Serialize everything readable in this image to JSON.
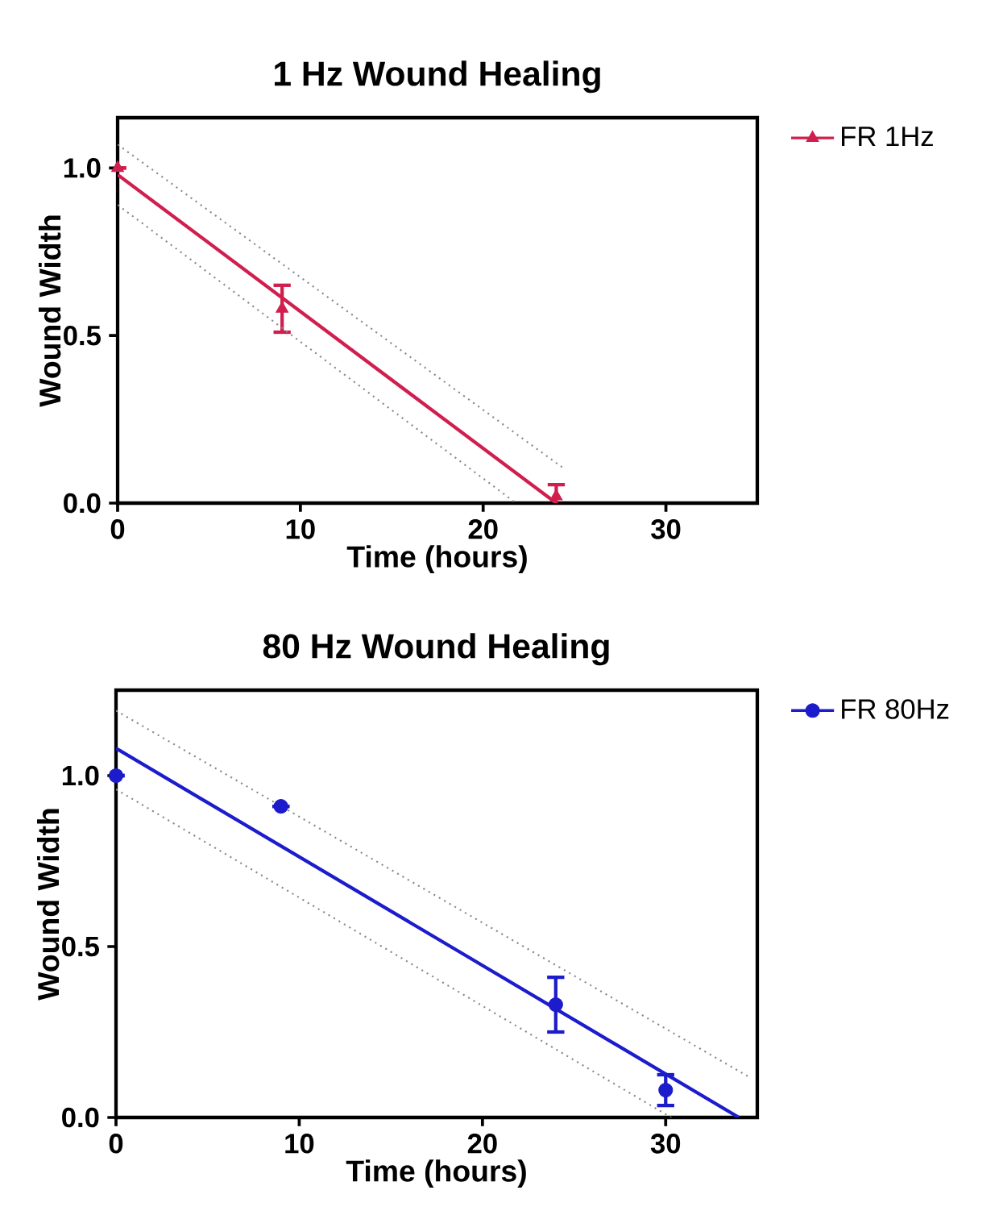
{
  "chart_data": [
    {
      "type": "scatter",
      "title": "1 Hz Wound Healing",
      "xlabel": "Time (hours)",
      "ylabel": "Wound Width",
      "xlim": [
        0,
        35
      ],
      "ylim": [
        0,
        1.15
      ],
      "xticks": [
        0,
        10,
        20,
        30
      ],
      "yticks": [
        {
          "value": 0,
          "label": "0.0"
        },
        {
          "value": 0.5,
          "label": "0.5"
        },
        {
          "value": 1,
          "label": "1.0"
        }
      ],
      "legend": "right",
      "series": [
        {
          "name": "FR 1Hz",
          "type": "scatter",
          "marker": "triangle",
          "color": "#d01f4e",
          "x": [
            0,
            9,
            24
          ],
          "values": [
            1.0,
            0.58,
            0.02
          ],
          "errors": [
            null,
            0.07,
            0.035
          ]
        },
        {
          "type": "line",
          "marker": "none",
          "color": "#d01f4e",
          "line_style": "solid",
          "x": [
            0,
            24
          ],
          "values": [
            0.98,
            0
          ]
        },
        {
          "type": "line",
          "marker": "none",
          "color": "#8a8a8a",
          "line_style": "dotted",
          "x": [
            0,
            24.5
          ],
          "values": [
            1.07,
            0.1
          ]
        },
        {
          "type": "line",
          "marker": "none",
          "color": "#8a8a8a",
          "line_style": "dotted",
          "x": [
            0,
            21.8
          ],
          "values": [
            0.89,
            0
          ]
        }
      ]
    },
    {
      "type": "scatter",
      "title": "80 Hz Wound Healing",
      "xlabel": "Time (hours)",
      "ylabel": "Wound Width",
      "xlim": [
        0,
        35
      ],
      "ylim": [
        0,
        1.25
      ],
      "xticks": [
        0,
        10,
        20,
        30
      ],
      "yticks": [
        {
          "value": 0,
          "label": "0.0"
        },
        {
          "value": 0.5,
          "label": "0.5"
        },
        {
          "value": 1,
          "label": "1.0"
        }
      ],
      "legend": "right",
      "series": [
        {
          "name": "FR 80Hz",
          "type": "scatter",
          "marker": "circle",
          "color": "#1c1ccc",
          "x": [
            0,
            9,
            24,
            30
          ],
          "values": [
            1.0,
            0.91,
            0.33,
            0.08
          ],
          "errors": [
            null,
            null,
            0.08,
            0.045
          ]
        },
        {
          "type": "line",
          "marker": "none",
          "color": "#1c1ccc",
          "line_style": "solid",
          "x": [
            0,
            34
          ],
          "values": [
            1.08,
            0
          ]
        },
        {
          "type": "line",
          "marker": "none",
          "color": "#8a8a8a",
          "line_style": "dotted",
          "x": [
            0,
            34.5
          ],
          "values": [
            1.19,
            0.12
          ]
        },
        {
          "type": "line",
          "marker": "none",
          "color": "#8a8a8a",
          "line_style": "dotted",
          "x": [
            0,
            30.3
          ],
          "values": [
            0.96,
            0
          ]
        }
      ]
    }
  ]
}
